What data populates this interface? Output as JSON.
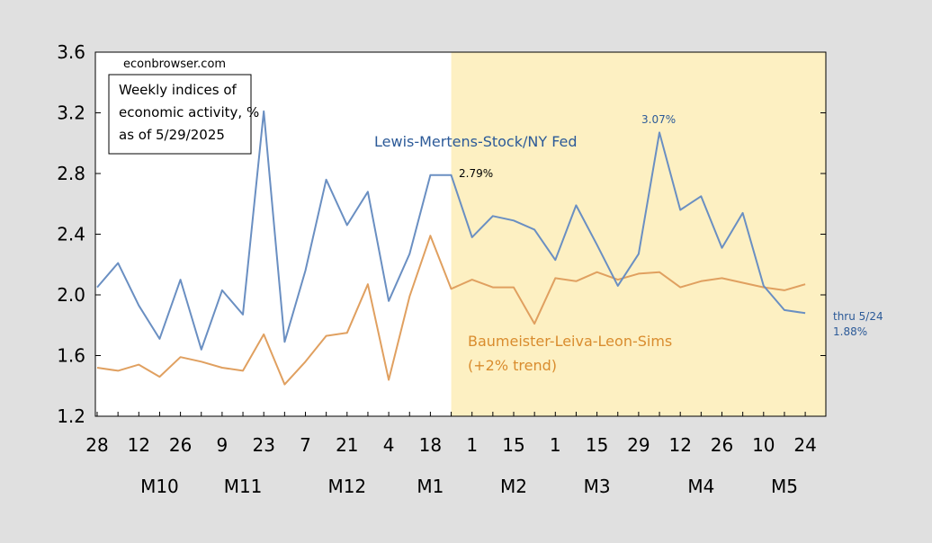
{
  "chart_data": {
    "type": "line",
    "ylim": [
      1.2,
      3.6
    ],
    "yticks": [
      1.2,
      1.6,
      2.0,
      2.4,
      2.8,
      3.2,
      3.6
    ],
    "ytick_labels": [
      "1.2",
      "1.6",
      "2.0",
      "2.4",
      "2.8",
      "3.2",
      "3.6"
    ],
    "x_day_ticks": [
      "28",
      "12",
      "26",
      "9",
      "23",
      "7",
      "21",
      "4",
      "18",
      "1",
      "15",
      "1",
      "15",
      "29",
      "12",
      "26",
      "10",
      "24"
    ],
    "x_month_labels": [
      "M10",
      "M11",
      "M12",
      "M1",
      "M2",
      "M3",
      "M4",
      "M5"
    ],
    "shaded_region_start_index": 17,
    "shade_color": "#fdf0c2",
    "series": [
      {
        "name": "Lewis-Mertens-Stock/NY Fed",
        "color": "#6a8fc2",
        "label_color": "#2c5a98",
        "values": [
          2.05,
          2.21,
          1.93,
          1.71,
          2.1,
          1.64,
          2.03,
          1.87,
          3.21,
          1.69,
          2.16,
          2.76,
          2.46,
          2.68,
          1.96,
          2.27,
          2.79,
          2.79,
          2.38,
          2.52,
          2.49,
          2.43,
          2.23,
          2.59,
          2.33,
          2.06,
          2.27,
          3.07,
          2.56,
          2.65,
          2.31,
          2.54,
          2.06,
          1.9,
          1.88
        ]
      },
      {
        "name": "Baumeister-Leiva-Leon-Sims",
        "color": "#e0a060",
        "label_color": "#d98c2e",
        "values": [
          1.52,
          1.5,
          1.54,
          1.46,
          1.59,
          1.56,
          1.52,
          1.5,
          1.74,
          1.41,
          1.56,
          1.73,
          1.75,
          2.07,
          1.44,
          1.99,
          2.39,
          2.04,
          2.1,
          2.05,
          2.05,
          1.81,
          2.11,
          2.09,
          2.15,
          2.1,
          2.14,
          2.15,
          2.05,
          2.09,
          2.11,
          2.08,
          2.05,
          2.03,
          2.07
        ]
      }
    ],
    "annotations": {
      "source": "econbrowser.com",
      "box_lines": [
        "Weekly indices of",
        "economic activity, %",
        "as of 5/29/2025"
      ],
      "lms_label": "Lewis-Mertens-Stock/NY Fed",
      "bll_label_line1": "Baumeister-Leiva-Leon-Sims",
      "bll_label_line2": "(+2% trend)",
      "point_279": "2.79%",
      "point_307": "3.07%",
      "thru_label": "thru 5/24",
      "last_value": "1.88%"
    }
  }
}
